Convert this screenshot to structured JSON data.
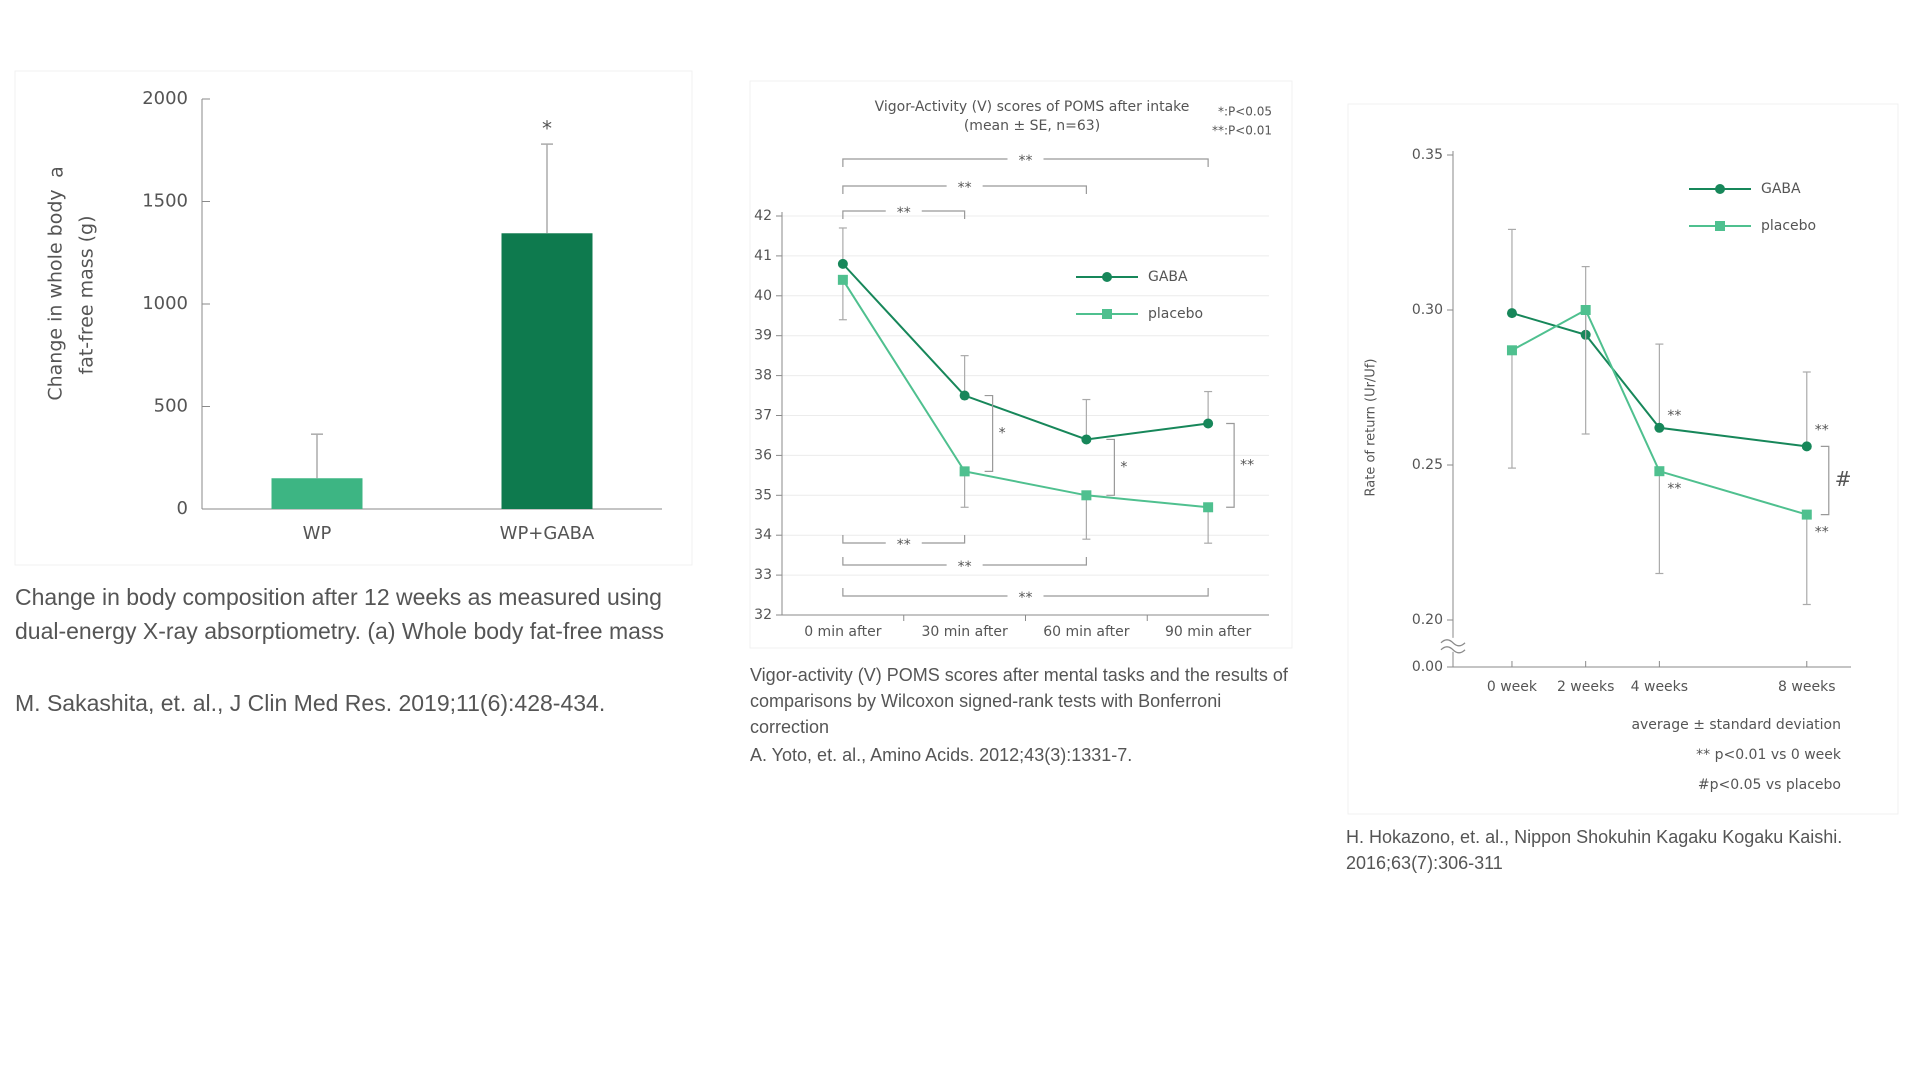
{
  "chart_data": [
    {
      "type": "bar",
      "panel_label": "a",
      "ylabel": [
        "Change in whole body",
        "fat-free mass (g)"
      ],
      "categories": [
        "WP",
        "WP+GABA"
      ],
      "values": [
        150,
        1345
      ],
      "errors": [
        215,
        435
      ],
      "value_annotations": [
        null,
        "*"
      ],
      "colors": [
        "#3db583",
        "#0e7a4e"
      ],
      "ylim": [
        0,
        2000
      ],
      "yticks": [
        0,
        500,
        1000,
        1500,
        2000
      ],
      "caption": "Change in body composition after 12 weeks as measured using dual-energy X-ray absorptiometry. (a) Whole body fat-free mass",
      "source": "M. Sakashita, et. al., J Clin Med Res. 2019;11(6):428-434."
    },
    {
      "type": "line",
      "title": "Vigor-Activity (V) scores of POMS after intake",
      "subtitle": "(mean ± SE, n=63)",
      "notes": [
        "*:P<0.05",
        "**:P<0.01"
      ],
      "categories": [
        "0 min after",
        "30 min after",
        "60 min after",
        "90 min after"
      ],
      "series": [
        {
          "name": "GABA",
          "color": "#17875a",
          "marker": "circle",
          "error_side": "up",
          "values": [
            40.8,
            37.5,
            36.4,
            36.8
          ],
          "errors": [
            0.9,
            1.0,
            1.0,
            0.8
          ]
        },
        {
          "name": "placebo",
          "color": "#4fc08f",
          "marker": "square",
          "error_side": "down",
          "values": [
            40.4,
            35.6,
            35.0,
            34.7
          ],
          "errors": [
            1.0,
            0.9,
            1.1,
            0.9
          ]
        }
      ],
      "annotations": [
        "**",
        "**",
        "**",
        "**",
        "**",
        "**",
        "*",
        "*",
        "**"
      ],
      "ylim": [
        32,
        42
      ],
      "yticks": [
        32,
        33,
        34,
        35,
        36,
        37,
        38,
        39,
        40,
        41,
        42
      ],
      "grid": true,
      "caption": "Vigor-activity (V) POMS scores after mental tasks and the results of comparisons by Wilcoxon signed-rank tests with Bonferroni correction",
      "source": "A. Yoto, et. al., Amino Acids. 2012;43(3):1331-7."
    },
    {
      "type": "line",
      "ylabel": "Rate of return (Ur/Uf)",
      "x": [
        0,
        2,
        4,
        8
      ],
      "xlim": [
        -1.6,
        9.2
      ],
      "xticks": [
        {
          "value": 0,
          "label": "0 week"
        },
        {
          "value": 2,
          "label": "2 weeks"
        },
        {
          "value": 4,
          "label": "4 weeks"
        },
        {
          "value": 8,
          "label": "8 weeks"
        }
      ],
      "series": [
        {
          "name": "GABA",
          "color": "#17875a",
          "marker": "circle",
          "error_side": "up",
          "values": [
            0.299,
            0.292,
            0.262,
            0.256
          ],
          "errors": [
            0.027,
            0.022,
            0.027,
            0.024
          ]
        },
        {
          "name": "placebo",
          "color": "#4fc08f",
          "marker": "square",
          "error_side": "down",
          "values": [
            0.287,
            0.3,
            0.248,
            0.234
          ],
          "errors": [
            0.038,
            0.04,
            0.033,
            0.029
          ]
        }
      ],
      "annotations": [
        "**",
        "**",
        "**",
        "**",
        "#"
      ],
      "ylim": [
        0.2,
        0.35
      ],
      "axis_break": true,
      "yticks": [
        {
          "value": 0,
          "label": "0.00"
        },
        {
          "value": 0.2,
          "label": "0.20"
        },
        0.25,
        {
          "value": 0.3,
          "label": "0.30"
        },
        0.35
      ],
      "notes": [
        "average ± standard deviation",
        "** p<0.01 vs 0 week",
        "#p<0.05 vs placebo"
      ],
      "source": "H. Hokazono, et. al., Nippon Shokuhin Kagaku Kogaku Kaishi. 2016;63(7):306-311"
    }
  ]
}
